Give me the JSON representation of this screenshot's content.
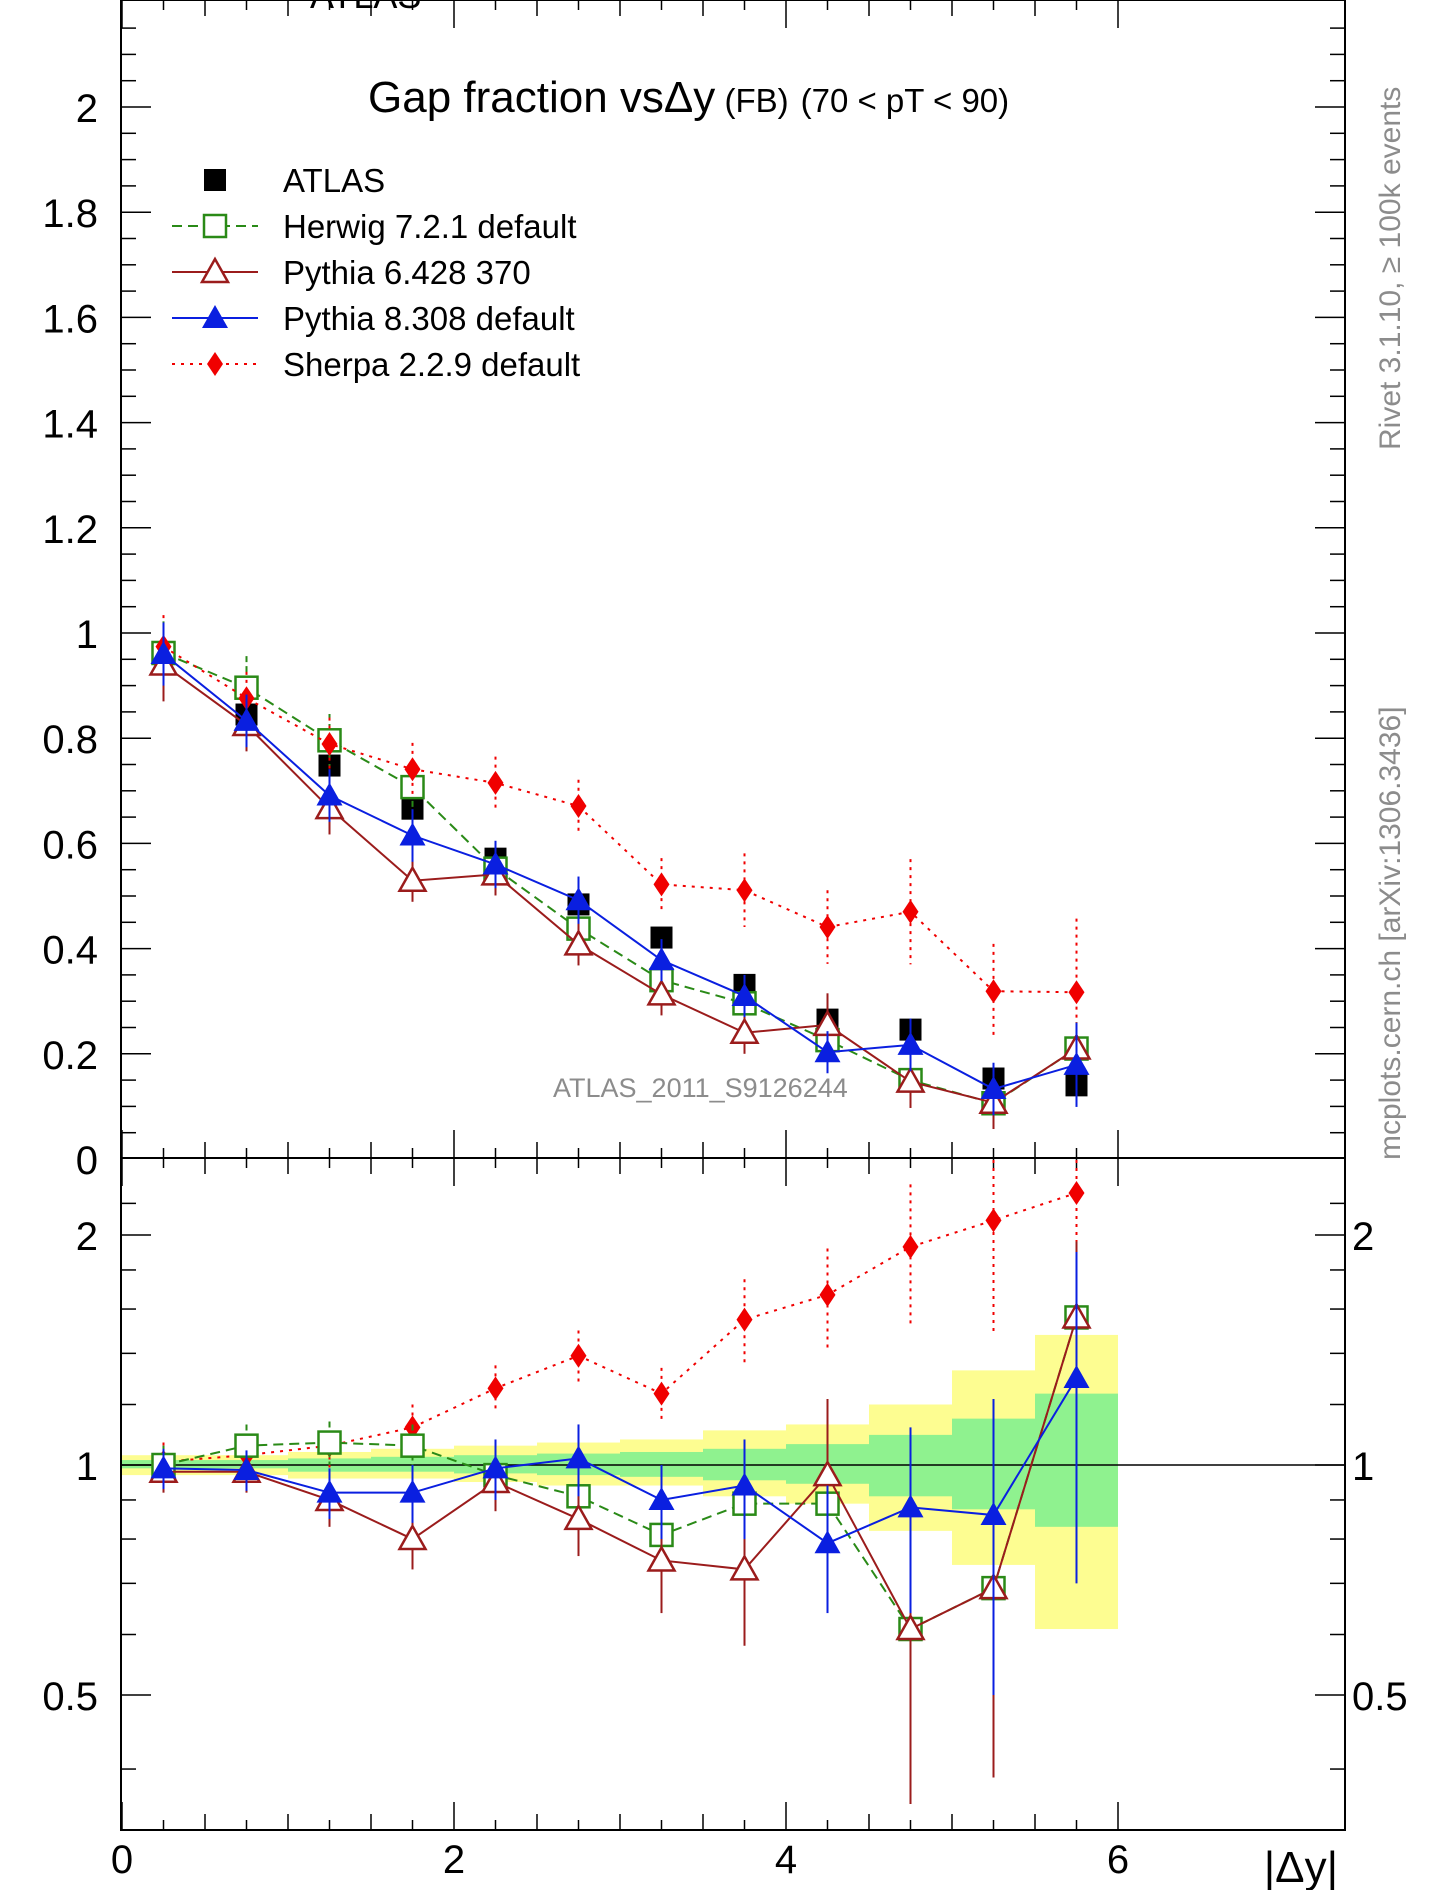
{
  "chart_data": [
    {
      "type": "line",
      "panel": "main",
      "title_main": "Gap fraction vs",
      "title_dy": "Δy",
      "title_fb": " (FB)",
      "title_range": "(70 < pT <  90)",
      "xlabel": "|Δy|",
      "ylabel": "",
      "xlim": [
        -0.1,
        6.1
      ],
      "ylim": [
        -0.05,
        2.2
      ],
      "y_ticks": [
        "0",
        "0.2",
        "0.4",
        "0.6",
        "0.8",
        "1",
        "1.2",
        "1.4",
        "1.6",
        "1.8",
        "2"
      ],
      "analysis_label": "ATLAS_2011_S9126244",
      "series": [
        {
          "name": "ATLAS",
          "color": "#000000",
          "marker": "filled-square",
          "line": "none",
          "x": [
            0.25,
            0.75,
            1.25,
            1.75,
            2.25,
            2.75,
            3.25,
            3.75,
            4.25,
            4.75,
            5.25,
            5.75
          ],
          "y": [
            0.96,
            0.845,
            0.748,
            0.666,
            0.571,
            0.484,
            0.421,
            0.331,
            0.265,
            0.246,
            0.153,
            0.14
          ],
          "err": [
            0.03,
            0.02,
            0.02,
            0.02,
            0.02,
            0.02,
            0.015,
            0.02,
            0.02,
            0.02,
            0.02,
            0.02
          ]
        },
        {
          "name": "Herwig 7.2.1 default",
          "color": "#2a8a17",
          "marker": "open-square",
          "line": "dashed",
          "x": [
            0.25,
            0.75,
            1.25,
            1.75,
            2.25,
            2.75,
            3.25,
            3.75,
            4.25,
            4.75,
            5.25,
            5.75
          ],
          "y": [
            0.962,
            0.896,
            0.796,
            0.707,
            0.552,
            0.438,
            0.34,
            0.296,
            0.226,
            0.15,
            0.106,
            0.21
          ],
          "err": [
            0.06,
            0.06,
            0.05,
            0.05,
            0.04,
            0.04,
            0.03,
            0.03,
            0.03,
            0.03,
            0.03,
            0.05
          ]
        },
        {
          "name": "Pythia 6.428 370",
          "color": "#9b1c1c",
          "marker": "open-triangle",
          "line": "solid",
          "x": [
            0.25,
            0.75,
            1.25,
            1.75,
            2.25,
            2.75,
            3.25,
            3.75,
            4.25,
            4.75,
            5.25,
            5.75
          ],
          "y": [
            0.94,
            0.825,
            0.667,
            0.529,
            0.541,
            0.408,
            0.313,
            0.24,
            0.255,
            0.147,
            0.107,
            0.21
          ],
          "err": [
            0.07,
            0.05,
            0.05,
            0.04,
            0.04,
            0.04,
            0.04,
            0.04,
            0.06,
            0.05,
            0.05,
            0.05
          ]
        },
        {
          "name": "Pythia 8.308 default",
          "color": "#0a1fe0",
          "marker": "filled-triangle",
          "line": "solid",
          "x": [
            0.25,
            0.75,
            1.25,
            1.75,
            2.25,
            2.75,
            3.25,
            3.75,
            4.25,
            4.75,
            5.25,
            5.75
          ],
          "y": [
            0.96,
            0.833,
            0.691,
            0.615,
            0.56,
            0.492,
            0.378,
            0.31,
            0.203,
            0.217,
            0.133,
            0.179
          ],
          "err": [
            0.06,
            0.05,
            0.05,
            0.05,
            0.045,
            0.045,
            0.04,
            0.04,
            0.04,
            0.05,
            0.05,
            0.08
          ]
        },
        {
          "name": "Sherpa 2.2.9 default",
          "color": "#f00000",
          "marker": "filled-diamond",
          "line": "dotted",
          "x": [
            0.25,
            0.75,
            1.25,
            1.75,
            2.25,
            2.75,
            3.25,
            3.75,
            4.25,
            4.75,
            5.25,
            5.75
          ],
          "y": [
            0.974,
            0.876,
            0.789,
            0.741,
            0.715,
            0.671,
            0.522,
            0.511,
            0.441,
            0.47,
            0.319,
            0.317
          ],
          "err": [
            0.06,
            0.05,
            0.05,
            0.05,
            0.05,
            0.05,
            0.05,
            0.07,
            0.07,
            0.1,
            0.09,
            0.14
          ]
        }
      ]
    },
    {
      "type": "line",
      "panel": "ratio",
      "xlabel": "|Δy|",
      "ylabel": "",
      "scale": "log",
      "xlim": [
        -0.1,
        6.1
      ],
      "ylim": [
        0.4,
        2.35
      ],
      "x_ticks": [
        "0",
        "2",
        "4",
        "6"
      ],
      "y_ticks": [
        "0.5",
        "1",
        "2"
      ],
      "reference_band": {
        "bins": [
          [
            0,
            0.5
          ],
          [
            0.5,
            1
          ],
          [
            1,
            1.5
          ],
          [
            1.5,
            2
          ],
          [
            2,
            2.5
          ],
          [
            2.5,
            3
          ],
          [
            3,
            3.5
          ],
          [
            3.5,
            4
          ],
          [
            4,
            4.5
          ],
          [
            4.5,
            5
          ],
          [
            5,
            5.5
          ],
          [
            5.5,
            6
          ]
        ],
        "yellow": [
          [
            0.97,
            1.03
          ],
          [
            0.97,
            1.03
          ],
          [
            0.96,
            1.04
          ],
          [
            0.96,
            1.05
          ],
          [
            0.95,
            1.06
          ],
          [
            0.94,
            1.07
          ],
          [
            0.94,
            1.08
          ],
          [
            0.91,
            1.11
          ],
          [
            0.89,
            1.13
          ],
          [
            0.82,
            1.2
          ],
          [
            0.74,
            1.33
          ],
          [
            0.61,
            1.48
          ]
        ],
        "green": [
          [
            0.99,
            1.015
          ],
          [
            0.99,
            1.015
          ],
          [
            0.98,
            1.02
          ],
          [
            0.98,
            1.025
          ],
          [
            0.975,
            1.03
          ],
          [
            0.97,
            1.035
          ],
          [
            0.965,
            1.04
          ],
          [
            0.955,
            1.05
          ],
          [
            0.945,
            1.065
          ],
          [
            0.91,
            1.095
          ],
          [
            0.875,
            1.15
          ],
          [
            0.83,
            1.24
          ]
        ],
        "colors": {
          "yellow": "#fdfd91",
          "green": "#8ff28f"
        }
      },
      "series": [
        {
          "name": "Herwig 7.2.1 default",
          "color": "#2a8a17",
          "marker": "open-square",
          "line": "dashed",
          "x": [
            0.25,
            0.75,
            1.25,
            1.75,
            2.25,
            2.75,
            3.25,
            3.75,
            4.25,
            4.75,
            5.25,
            5.75
          ],
          "y": [
            1.0,
            1.06,
            1.07,
            1.06,
            0.97,
            0.91,
            0.81,
            0.89,
            0.89,
            0.61,
            0.69,
            1.56
          ],
          "err": [
            0.06,
            0.07,
            0.07,
            0.07,
            0.07,
            0.08,
            0.08,
            0.1,
            0.12,
            0.13,
            0.2,
            0.4
          ]
        },
        {
          "name": "Pythia 6.428 370",
          "color": "#9b1c1c",
          "marker": "open-triangle",
          "line": "solid",
          "x": [
            0.25,
            0.75,
            1.25,
            1.75,
            2.25,
            2.75,
            3.25,
            3.75,
            4.25,
            4.75,
            5.25,
            5.75
          ],
          "y": [
            0.98,
            0.98,
            0.9,
            0.8,
            0.95,
            0.85,
            0.75,
            0.73,
            0.97,
            0.61,
            0.69,
            1.56
          ],
          "err": [
            0.06,
            0.06,
            0.07,
            0.07,
            0.08,
            0.09,
            0.11,
            0.15,
            0.25,
            0.25,
            0.3,
            0.4
          ]
        },
        {
          "name": "Pythia 8.308 default",
          "color": "#0a1fe0",
          "marker": "filled-triangle",
          "line": "solid",
          "x": [
            0.25,
            0.75,
            1.25,
            1.75,
            2.25,
            2.75,
            3.25,
            3.75,
            4.25,
            4.75,
            5.25,
            5.75
          ],
          "y": [
            0.99,
            0.985,
            0.92,
            0.92,
            0.99,
            1.02,
            0.9,
            0.94,
            0.79,
            0.88,
            0.86,
            1.3
          ],
          "err": [
            0.06,
            0.06,
            0.07,
            0.08,
            0.09,
            0.11,
            0.1,
            0.14,
            0.15,
            0.24,
            0.36,
            0.6
          ]
        },
        {
          "name": "Sherpa 2.2.9 default",
          "color": "#f00000",
          "marker": "filled-diamond",
          "line": "dotted",
          "x": [
            0.25,
            0.75,
            1.25,
            1.75,
            2.25,
            2.75,
            3.25,
            3.75,
            4.25,
            4.75,
            5.25,
            5.75
          ],
          "y": [
            1.01,
            1.03,
            1.06,
            1.12,
            1.26,
            1.39,
            1.24,
            1.55,
            1.67,
            1.93,
            2.09,
            2.27
          ],
          "err": [
            0.06,
            0.06,
            0.07,
            0.08,
            0.09,
            0.11,
            0.1,
            0.2,
            0.25,
            0.4,
            0.6,
            0.7
          ]
        }
      ]
    }
  ],
  "side_labels": {
    "right_top": "Rivet 3.1.10, ≥ 100k events",
    "right_bottom": "mcplots.cern.ch [arXiv:1306.3436]"
  },
  "top_clipped_label": "ATLAS"
}
